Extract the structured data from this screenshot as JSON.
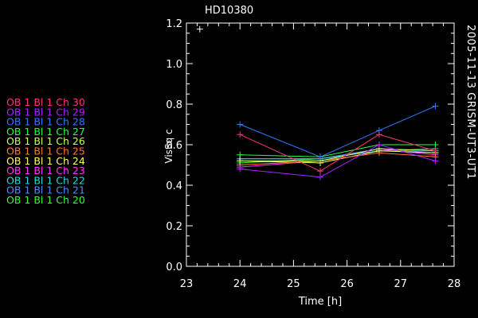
{
  "chart_data": {
    "type": "line",
    "title": "HD10380",
    "side_label": "2005-11-13 GRISM-UT3-UT1",
    "xlabel": "Time [h]",
    "ylabel": "VisSq c",
    "xlim": [
      23,
      28
    ],
    "ylim": [
      0.0,
      1.2
    ],
    "xticks": [
      "23",
      "24",
      "25",
      "26",
      "27",
      "28"
    ],
    "yticks": [
      "0.0",
      "0.2",
      "0.4",
      "0.6",
      "0.8",
      "1.0",
      "1.2"
    ],
    "stray_point": {
      "x": 23.25,
      "y": 1.17
    },
    "x": [
      24.0,
      25.5,
      26.6,
      27.65
    ],
    "series": [
      {
        "name": "OB 1 Bl 1 Ch 30",
        "color": "#ff3377",
        "values": [
          0.65,
          0.47,
          0.65,
          0.57
        ]
      },
      {
        "name": "OB 1 Bl 1 Ch 29",
        "color": "#aa22ff",
        "values": [
          0.48,
          0.44,
          0.6,
          0.52
        ]
      },
      {
        "name": "OB 1 Bl 1 Ch 28",
        "color": "#3377ff",
        "values": [
          0.7,
          0.54,
          0.67,
          0.79
        ]
      },
      {
        "name": "OB 1 Bl 1 Ch 27",
        "color": "#22ff44",
        "values": [
          0.55,
          0.54,
          0.6,
          0.6
        ]
      },
      {
        "name": "OB 1 Bl 1 Ch 26",
        "color": "#ccff55",
        "values": [
          0.52,
          0.52,
          0.58,
          0.57
        ]
      },
      {
        "name": "OB 1 Bl 1 Ch 25",
        "color": "#ff7733",
        "values": [
          0.5,
          0.52,
          0.56,
          0.54
        ]
      },
      {
        "name": "OB 1 Bl 1 Ch 24",
        "color": "#ffff66",
        "values": [
          0.52,
          0.51,
          0.57,
          0.56
        ]
      },
      {
        "name": "OB 1 Bl 1 Ch 23",
        "color": "#ff33ff",
        "values": [
          0.49,
          0.52,
          0.58,
          0.55
        ]
      },
      {
        "name": "OB 1 Bl 1 Ch 22",
        "color": "#22dddd",
        "values": [
          0.53,
          0.53,
          0.57,
          0.58
        ]
      },
      {
        "name": "OB 1 Bl 1 Ch 21",
        "color": "#5588ff",
        "values": [
          0.53,
          0.53,
          0.58,
          0.56
        ]
      },
      {
        "name": "OB 1 Bl 1 Ch 20",
        "color": "#33ff33",
        "values": [
          0.51,
          0.53,
          0.58,
          0.57
        ]
      }
    ]
  }
}
